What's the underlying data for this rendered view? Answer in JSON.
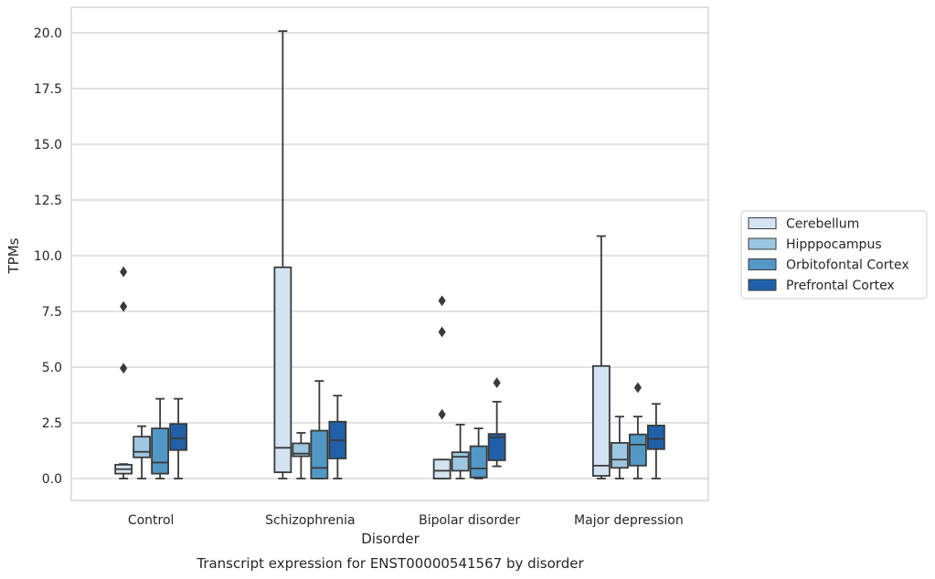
{
  "chart_data": {
    "type": "box",
    "title": "",
    "caption": "Transcript expression for ENST00000541567 by disorder",
    "xlabel": "Disorder",
    "ylabel": "TPMs",
    "ylim": [
      -1.0,
      21.1
    ],
    "yticks": [
      "0.0",
      "2.5",
      "5.0",
      "7.5",
      "10.0",
      "12.5",
      "15.0",
      "17.5",
      "20.0"
    ],
    "grid": "horizontal",
    "legend_position": "right",
    "categories": [
      "Control",
      "Schizophrenia",
      "Bipolar disorder",
      "Major depression"
    ],
    "series": [
      {
        "name": "Cerebellum",
        "color": "#d3e3f2",
        "boxes": [
          {
            "whislo": 0.0,
            "q1": 0.22,
            "med": 0.42,
            "q3": 0.62,
            "whishi": 0.65,
            "fliers": [
              9.28,
              7.72,
              4.95
            ]
          },
          {
            "whislo": 0.0,
            "q1": 0.28,
            "med": 1.38,
            "q3": 9.48,
            "whishi": 20.08,
            "fliers": []
          },
          {
            "whislo": 0.0,
            "q1": 0.0,
            "med": 0.35,
            "q3": 0.85,
            "whishi": 0.85,
            "fliers": [
              7.98,
              6.58,
              2.88
            ]
          },
          {
            "whislo": 0.0,
            "q1": 0.12,
            "med": 0.58,
            "q3": 5.05,
            "whishi": 10.88,
            "fliers": []
          }
        ]
      },
      {
        "name": "Hipppocampus",
        "color": "#9dc6e0",
        "boxes": [
          {
            "whislo": 0.0,
            "q1": 0.95,
            "med": 1.2,
            "q3": 1.88,
            "whishi": 2.35,
            "fliers": []
          },
          {
            "whislo": 0.0,
            "q1": 1.0,
            "med": 1.12,
            "q3": 1.58,
            "whishi": 2.05,
            "fliers": []
          },
          {
            "whislo": 0.0,
            "q1": 0.35,
            "med": 0.98,
            "q3": 1.18,
            "whishi": 2.42,
            "fliers": []
          },
          {
            "whislo": 0.0,
            "q1": 0.48,
            "med": 0.85,
            "q3": 1.6,
            "whishi": 2.78,
            "fliers": []
          }
        ]
      },
      {
        "name": "Orbitofontal Cortex",
        "color": "#5198c6",
        "boxes": [
          {
            "whislo": 0.0,
            "q1": 0.22,
            "med": 0.72,
            "q3": 2.25,
            "whishi": 3.58,
            "fliers": []
          },
          {
            "whislo": 0.0,
            "q1": 0.0,
            "med": 0.48,
            "q3": 2.15,
            "whishi": 4.38,
            "fliers": []
          },
          {
            "whislo": 0.0,
            "q1": 0.05,
            "med": 0.45,
            "q3": 1.45,
            "whishi": 2.25,
            "fliers": []
          },
          {
            "whislo": 0.0,
            "q1": 0.58,
            "med": 1.52,
            "q3": 1.98,
            "whishi": 2.78,
            "fliers": [
              4.08
            ]
          }
        ]
      },
      {
        "name": "Prefrontal Cortex",
        "color": "#2060a8",
        "boxes": [
          {
            "whislo": 0.0,
            "q1": 1.28,
            "med": 1.8,
            "q3": 2.45,
            "whishi": 3.58,
            "fliers": []
          },
          {
            "whislo": 0.0,
            "q1": 0.9,
            "med": 1.72,
            "q3": 2.55,
            "whishi": 3.72,
            "fliers": []
          },
          {
            "whislo": 0.55,
            "q1": 0.82,
            "med": 1.85,
            "q3": 2.0,
            "whishi": 3.45,
            "fliers": [
              4.3
            ]
          },
          {
            "whislo": 0.0,
            "q1": 1.32,
            "med": 1.78,
            "q3": 2.38,
            "whishi": 3.35,
            "fliers": []
          }
        ]
      }
    ]
  }
}
